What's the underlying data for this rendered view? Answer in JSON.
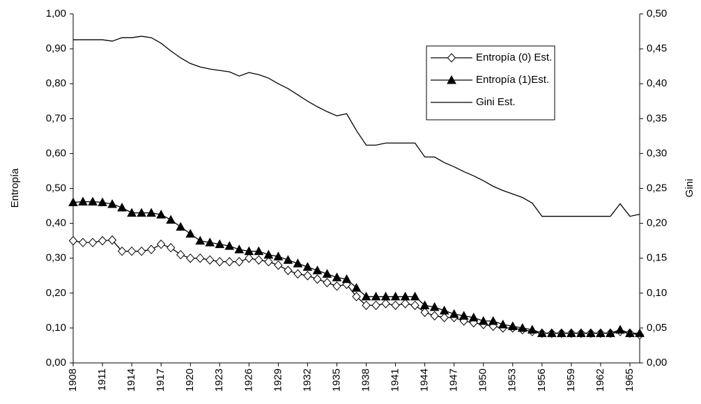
{
  "chart_data": {
    "type": "line",
    "y_label": "Entropía",
    "y2_label": "Gini",
    "categories": [
      "1908",
      null,
      null,
      "1911",
      null,
      null,
      "1914",
      null,
      null,
      "1917",
      null,
      null,
      "1920",
      null,
      null,
      "1923",
      null,
      null,
      "1926",
      null,
      null,
      "1929",
      null,
      null,
      "1932",
      null,
      null,
      "1935",
      null,
      null,
      "1938",
      null,
      null,
      "1941",
      null,
      null,
      "1944",
      null,
      null,
      "1947",
      null,
      null,
      "1950",
      null,
      null,
      "1953",
      null,
      null,
      "1956",
      null,
      null,
      "1959",
      null,
      null,
      "1962",
      null,
      null,
      "1965",
      null
    ],
    "series": [
      {
        "name": "Entropía (0) Est.",
        "color": "#000000",
        "marker": "diamond",
        "values": [
          0.35,
          0.345,
          0.345,
          0.35,
          0.352,
          0.32,
          0.32,
          0.32,
          0.325,
          0.34,
          0.33,
          0.31,
          0.3,
          0.3,
          0.295,
          0.29,
          0.29,
          0.29,
          0.3,
          0.295,
          0.29,
          0.28,
          0.265,
          0.255,
          0.25,
          0.24,
          0.23,
          0.22,
          0.225,
          0.19,
          0.165,
          0.165,
          0.17,
          0.165,
          0.17,
          0.165,
          0.145,
          0.135,
          0.13,
          0.13,
          0.12,
          0.115,
          0.11,
          0.105,
          0.1,
          0.1,
          0.095,
          0.09,
          0.085,
          0.085,
          0.085,
          0.085,
          0.085,
          0.085,
          0.085,
          0.085,
          0.09,
          0.085,
          0.08
        ]
      },
      {
        "name": "Entropía (1)Est.",
        "color": "#000000",
        "marker": "triangle",
        "values": [
          0.46,
          0.462,
          0.462,
          0.46,
          0.455,
          0.445,
          0.43,
          0.43,
          0.43,
          0.425,
          0.41,
          0.39,
          0.37,
          0.35,
          0.345,
          0.34,
          0.335,
          0.325,
          0.32,
          0.32,
          0.31,
          0.305,
          0.295,
          0.285,
          0.275,
          0.265,
          0.255,
          0.245,
          0.24,
          0.215,
          0.19,
          0.19,
          0.19,
          0.19,
          0.19,
          0.19,
          0.165,
          0.16,
          0.15,
          0.14,
          0.135,
          0.13,
          0.12,
          0.12,
          0.11,
          0.105,
          0.1,
          0.095,
          0.085,
          0.085,
          0.085,
          0.085,
          0.085,
          0.085,
          0.085,
          0.085,
          0.095,
          0.085,
          0.085
        ]
      },
      {
        "name": "Gini Est.",
        "color": "#000000",
        "marker": "none",
        "axis": "y2",
        "values": [
          0.463,
          0.463,
          0.463,
          0.463,
          0.461,
          0.466,
          0.466,
          0.468,
          0.466,
          0.458,
          0.447,
          0.437,
          0.429,
          0.424,
          0.421,
          0.419,
          0.417,
          0.411,
          0.416,
          0.413,
          0.408,
          0.4,
          0.393,
          0.384,
          0.375,
          0.367,
          0.36,
          0.354,
          0.357,
          0.333,
          0.312,
          0.312,
          0.315,
          0.315,
          0.315,
          0.315,
          0.295,
          0.295,
          0.287,
          0.281,
          0.274,
          0.268,
          0.261,
          0.253,
          0.247,
          0.242,
          0.237,
          0.229,
          0.21,
          0.21,
          0.21,
          0.21,
          0.21,
          0.21,
          0.21,
          0.21,
          0.228,
          0.21,
          0.213
        ]
      }
    ],
    "ylim": [
      0,
      1
    ],
    "yticks": [
      {
        "value": 0,
        "label": "0,00"
      },
      {
        "value": 0.1,
        "label": "0,10"
      },
      {
        "value": 0.2,
        "label": "0,20"
      },
      {
        "value": 0.3,
        "label": "0,30"
      },
      {
        "value": 0.4,
        "label": "0,40"
      },
      {
        "value": 0.5,
        "label": "0,50"
      },
      {
        "value": 0.6,
        "label": "0,60"
      },
      {
        "value": 0.7,
        "label": "0,70"
      },
      {
        "value": 0.8,
        "label": "0,80"
      },
      {
        "value": 0.9,
        "label": "0,90"
      },
      {
        "value": 1,
        "label": "1,00"
      }
    ],
    "y2lim": [
      0,
      0.5
    ],
    "y2ticks": [
      {
        "value": 0,
        "label": "0,00"
      },
      {
        "value": 0.05,
        "label": "0,05"
      },
      {
        "value": 0.1,
        "label": "0,10"
      },
      {
        "value": 0.15,
        "label": "0,15"
      },
      {
        "value": 0.2,
        "label": "0,20"
      },
      {
        "value": 0.25,
        "label": "0,25"
      },
      {
        "value": 0.3,
        "label": "0,30"
      },
      {
        "value": 0.35,
        "label": "0,35"
      },
      {
        "value": 0.4,
        "label": "0,40"
      },
      {
        "value": 0.45,
        "label": "0,45"
      },
      {
        "value": 0.5,
        "label": "0,50"
      }
    ],
    "grid": false,
    "legend": "upper right"
  }
}
